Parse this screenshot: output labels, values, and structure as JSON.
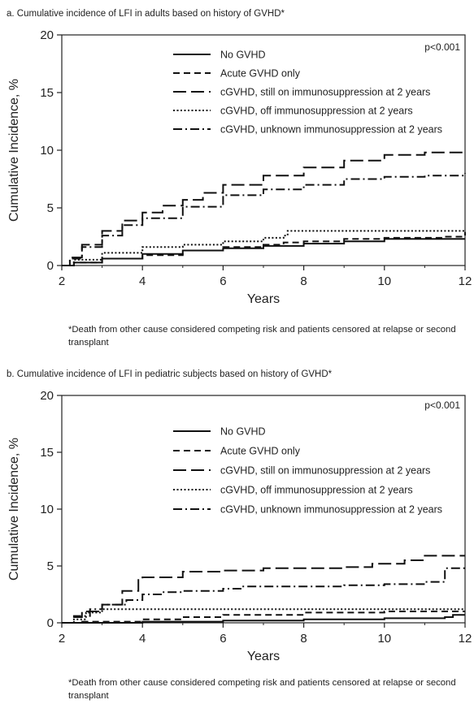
{
  "chart_data": [
    {
      "type": "line",
      "title": "a. Cumulative incidence of LFI in adults based on history of GVHD*",
      "xlabel": "Years",
      "ylabel": "Cumulative Incidence, %",
      "xlim": [
        2,
        12
      ],
      "ylim": [
        0,
        20
      ],
      "xticks": [
        "2",
        "4",
        "6",
        "8",
        "10",
        "12"
      ],
      "yticks": [
        "0",
        "5",
        "10",
        "15",
        "20"
      ],
      "annotation": "p<0.001",
      "legend_position": "top-right",
      "footnote": "*Death from other cause considered competing risk and patients censored at relapse or second transplant",
      "series": [
        {
          "name": "No GVHD",
          "dash": "solid",
          "x": [
            2.0,
            2.3,
            3.0,
            4.0,
            5.0,
            6.0,
            7.0,
            8.0,
            9.0,
            10.0,
            12.0
          ],
          "y": [
            0.0,
            0.25,
            0.6,
            1.0,
            1.3,
            1.5,
            1.7,
            1.9,
            2.1,
            2.3,
            2.3
          ]
        },
        {
          "name": "Acute GVHD only",
          "dash": "short-dash",
          "x": [
            2.0,
            2.3,
            3.0,
            4.0,
            5.0,
            6.0,
            7.0,
            7.5,
            8.0,
            9.0,
            10.0,
            11.5,
            12.0
          ],
          "y": [
            0.0,
            0.25,
            0.6,
            0.9,
            1.3,
            1.6,
            1.8,
            2.0,
            2.1,
            2.3,
            2.4,
            2.5,
            2.9
          ]
        },
        {
          "name": "cGVHD, still on immunosuppression at 2 years",
          "dash": "long-dash",
          "x": [
            2.0,
            2.2,
            2.5,
            3.0,
            3.5,
            4.0,
            4.5,
            5.0,
            5.5,
            6.0,
            7.0,
            8.0,
            9.0,
            10.0,
            11.0,
            12.0
          ],
          "y": [
            0.0,
            0.7,
            1.8,
            3.0,
            3.9,
            4.6,
            5.2,
            5.7,
            6.3,
            7.0,
            7.8,
            8.5,
            9.1,
            9.6,
            9.8,
            10.0
          ]
        },
        {
          "name": "cGVHD, off immunosuppression at 2 years",
          "dash": "dotted",
          "x": [
            2.0,
            2.3,
            3.0,
            4.0,
            5.0,
            6.0,
            7.0,
            7.5,
            7.6,
            9.0,
            10.0,
            12.0
          ],
          "y": [
            0.0,
            0.5,
            1.1,
            1.6,
            1.8,
            2.1,
            2.4,
            2.6,
            3.0,
            3.0,
            3.0,
            3.0
          ]
        },
        {
          "name": "cGVHD, unknown immunosuppression at 2 years",
          "dash": "dash-dot",
          "x": [
            2.0,
            2.2,
            2.5,
            3.0,
            3.5,
            4.0,
            5.0,
            6.0,
            7.0,
            8.0,
            9.0,
            10.0,
            11.0,
            12.0
          ],
          "y": [
            0.0,
            0.6,
            1.6,
            2.6,
            3.5,
            4.1,
            5.1,
            6.1,
            6.6,
            7.0,
            7.5,
            7.7,
            7.8,
            8.0
          ]
        }
      ]
    },
    {
      "type": "line",
      "title": "b. Cumulative incidence of LFI in pediatric subjects based on history of GVHD*",
      "xlabel": "Years",
      "ylabel": "Cumulative Incidence, %",
      "xlim": [
        2,
        12
      ],
      "ylim": [
        0,
        20
      ],
      "xticks": [
        "2",
        "4",
        "6",
        "8",
        "10",
        "12"
      ],
      "yticks": [
        "0",
        "5",
        "10",
        "15",
        "20"
      ],
      "annotation": "p<0.001",
      "legend_position": "top-right",
      "footnote": "*Death from other cause considered competing risk and patients censored at relapse or second transplant",
      "series": [
        {
          "name": "No GVHD",
          "dash": "solid",
          "x": [
            2.0,
            2.5,
            4.0,
            6.0,
            8.0,
            10.0,
            11.5,
            11.7,
            12.0
          ],
          "y": [
            0.0,
            0.0,
            0.1,
            0.2,
            0.3,
            0.4,
            0.5,
            0.7,
            0.7
          ]
        },
        {
          "name": "Acute GVHD only",
          "dash": "short-dash",
          "x": [
            2.0,
            2.5,
            4.0,
            5.0,
            6.0,
            8.0,
            10.0,
            12.0
          ],
          "y": [
            0.0,
            0.1,
            0.3,
            0.5,
            0.7,
            0.9,
            1.0,
            1.0
          ]
        },
        {
          "name": "cGVHD, still on immunosuppression at 2 years",
          "dash": "long-dash",
          "x": [
            2.0,
            2.3,
            2.5,
            3.0,
            3.5,
            3.9,
            4.0,
            5.0,
            6.0,
            7.0,
            9.0,
            9.7,
            10.5,
            11.0,
            12.0
          ],
          "y": [
            0.0,
            0.5,
            1.0,
            1.6,
            2.8,
            3.9,
            4.0,
            4.5,
            4.6,
            4.8,
            4.9,
            5.2,
            5.5,
            5.9,
            5.9
          ]
        },
        {
          "name": "cGVHD, off immunosuppression at 2 years",
          "dash": "dotted",
          "x": [
            2.0,
            2.3,
            2.6,
            3.0,
            4.0,
            6.0,
            8.0,
            10.0,
            12.0
          ],
          "y": [
            0.0,
            0.3,
            0.9,
            1.2,
            1.2,
            1.2,
            1.2,
            1.2,
            1.2
          ]
        },
        {
          "name": "cGVHD, unknown immunosuppression at 2 years",
          "dash": "dash-dot",
          "x": [
            2.0,
            2.3,
            2.7,
            3.0,
            3.6,
            4.0,
            4.5,
            5.0,
            6.0,
            6.5,
            7.0,
            9.0,
            10.0,
            11.0,
            11.5,
            12.0
          ],
          "y": [
            0.0,
            0.6,
            1.2,
            1.6,
            2.0,
            2.5,
            2.7,
            2.8,
            3.0,
            3.2,
            3.2,
            3.3,
            3.4,
            3.6,
            4.8,
            4.8
          ]
        }
      ]
    }
  ]
}
